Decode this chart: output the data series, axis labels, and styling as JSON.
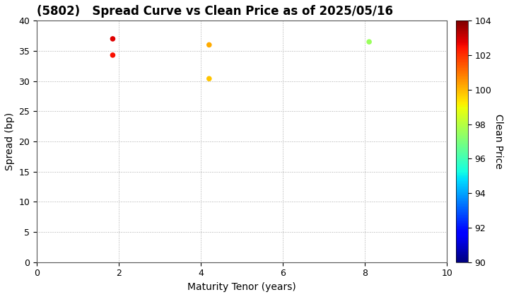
{
  "title": "(5802)   Spread Curve vs Clean Price as of 2025/05/16",
  "xlabel": "Maturity Tenor (years)",
  "ylabel": "Spread (bp)",
  "colorbar_label": "Clean Price",
  "xlim": [
    0,
    10
  ],
  "ylim": [
    0,
    40
  ],
  "xticks": [
    0,
    2,
    4,
    6,
    8,
    10
  ],
  "yticks": [
    0,
    5,
    10,
    15,
    20,
    25,
    30,
    35,
    40
  ],
  "color_min": 90,
  "color_max": 104,
  "colorbar_ticks": [
    90,
    92,
    94,
    96,
    98,
    100,
    102,
    104
  ],
  "points": [
    {
      "tenor": 1.85,
      "spread": 37.0,
      "price": 102.8
    },
    {
      "tenor": 1.85,
      "spread": 34.3,
      "price": 102.5
    },
    {
      "tenor": 4.2,
      "spread": 36.0,
      "price": 100.2
    },
    {
      "tenor": 4.2,
      "spread": 30.4,
      "price": 99.8
    },
    {
      "tenor": 8.1,
      "spread": 36.5,
      "price": 97.5
    }
  ],
  "marker_size": 30,
  "grid_color": "#aaaaaa",
  "grid_style": "dotted",
  "background_color": "#ffffff",
  "title_fontsize": 12,
  "axis_fontsize": 10,
  "tick_fontsize": 9,
  "colorbar_labelpad": 12,
  "figure_width": 7.2,
  "figure_height": 4.2,
  "figure_dpi": 100
}
